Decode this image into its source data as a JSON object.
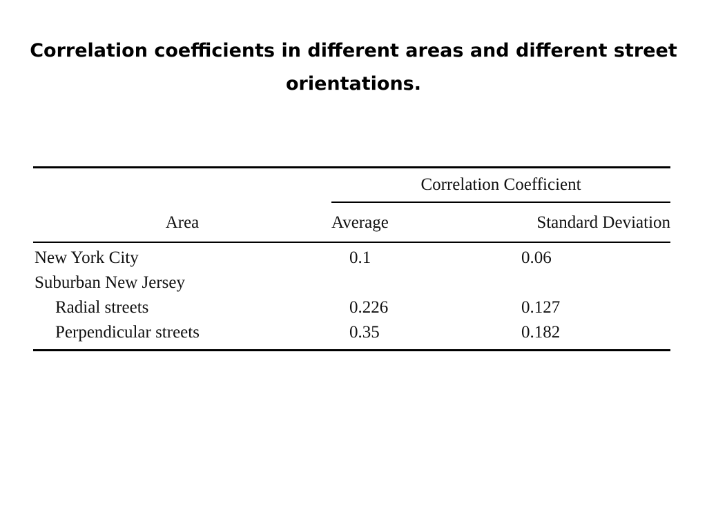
{
  "title": "Correlation coefficients in different areas and different street orientations.",
  "table": {
    "group_header": "Correlation Coefficient",
    "columns": {
      "area": "Area",
      "average": "Average",
      "std_dev": "Standard Deviation"
    },
    "rows": [
      {
        "area": "New York City",
        "average": "0.1",
        "std_dev": "0.06",
        "indent": false
      },
      {
        "area": "Suburban New Jersey",
        "average": "",
        "std_dev": "",
        "indent": false
      },
      {
        "area": "Radial streets",
        "average": "0.226",
        "std_dev": "0.127",
        "indent": true
      },
      {
        "area": "Perpendicular streets",
        "average": "0.35",
        "std_dev": "0.182",
        "indent": true
      }
    ]
  },
  "chart_data": {
    "type": "table",
    "title": "Correlation coefficients in different areas and different street orientations.",
    "columns": [
      "Area",
      "Average",
      "Standard Deviation"
    ],
    "rows": [
      [
        "New York City",
        0.1,
        0.06
      ],
      [
        "Suburban New Jersey",
        null,
        null
      ],
      [
        "Radial streets",
        0.226,
        0.127
      ],
      [
        "Perpendicular streets",
        0.35,
        0.182
      ]
    ]
  }
}
